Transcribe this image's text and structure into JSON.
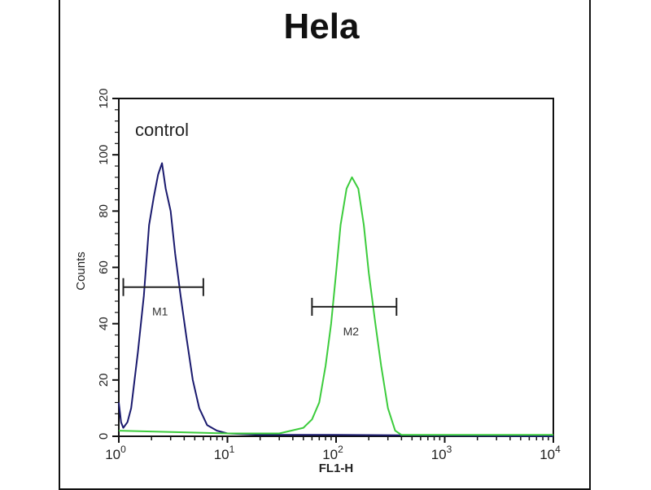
{
  "chart_data": {
    "type": "line",
    "title": "Hela",
    "xlabel": "FL1-H",
    "ylabel": "Counts",
    "x_scale": "log",
    "xlim": [
      1,
      10000
    ],
    "ylim": [
      0,
      120
    ],
    "x_ticks": [
      {
        "base": "10",
        "exp": "0"
      },
      {
        "base": "10",
        "exp": "1"
      },
      {
        "base": "10",
        "exp": "2"
      },
      {
        "base": "10",
        "exp": "3"
      },
      {
        "base": "10",
        "exp": "4"
      }
    ],
    "y_ticks": [
      "0",
      "20",
      "40",
      "60",
      "80",
      "100",
      "120"
    ],
    "annotation": "control",
    "grid": false,
    "series": [
      {
        "color": "#1a1a6e",
        "x": [
          1,
          1.05,
          1.1,
          1.2,
          1.3,
          1.5,
          1.7,
          1.9,
          2.1,
          2.3,
          2.5,
          2.7,
          3.0,
          3.3,
          3.7,
          4.2,
          4.8,
          5.5,
          6.5,
          8,
          10,
          20,
          100,
          10000
        ],
        "y": [
          12,
          5,
          3,
          5,
          10,
          30,
          50,
          75,
          85,
          93,
          97,
          88,
          80,
          65,
          50,
          35,
          20,
          10,
          4,
          2,
          1,
          0.5,
          0.5,
          0
        ]
      },
      {
        "color": "#3ccc3c",
        "x": [
          1,
          10,
          30,
          50,
          60,
          70,
          80,
          90,
          100,
          110,
          125,
          140,
          160,
          180,
          200,
          230,
          260,
          300,
          350,
          400,
          10000
        ],
        "y": [
          2,
          1,
          1,
          3,
          6,
          12,
          25,
          40,
          58,
          75,
          88,
          92,
          88,
          75,
          58,
          40,
          25,
          10,
          2,
          0.5,
          0.5
        ]
      }
    ],
    "markers": [
      {
        "label": "M1",
        "x": [
          1.1,
          6.0
        ],
        "y": 53
      },
      {
        "label": "M2",
        "x": [
          60,
          360
        ],
        "y": 46
      }
    ]
  }
}
